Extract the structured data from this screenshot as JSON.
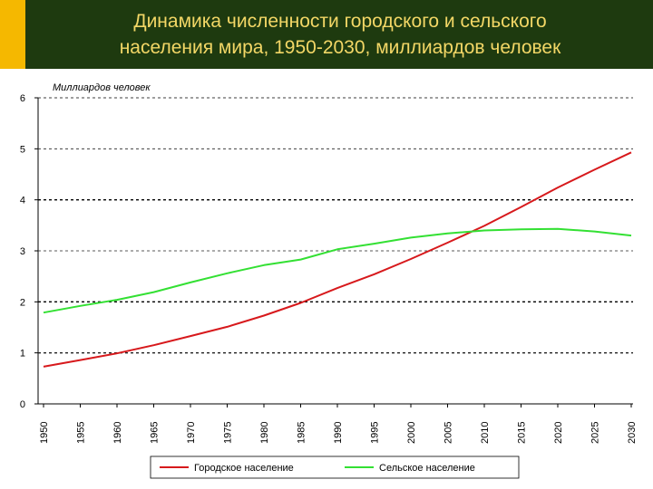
{
  "slide": {
    "title_line1": "Динамика численности городского и сельского",
    "title_line2": "населения мира, 1950-2030, миллиардов человек",
    "header_bg": "#1e3a0f",
    "accent_color": "#f5b800",
    "title_color": "#f3d766"
  },
  "chart_data": {
    "type": "line",
    "title": "",
    "ylabel": "Миллиардов человек",
    "xlabel": "",
    "ylim": [
      0,
      6
    ],
    "xlim": [
      1950,
      2030
    ],
    "yticks": [
      "0",
      "1",
      "2",
      "3",
      "4",
      "5",
      "6"
    ],
    "xticks": [
      "1950",
      "1955",
      "1960",
      "1965",
      "1970",
      "1975",
      "1980",
      "1985",
      "1990",
      "1995",
      "2000",
      "2005",
      "2010",
      "2015",
      "2020",
      "2025",
      "2030"
    ],
    "grid": "horizontal dashed",
    "legend_position": "bottom",
    "x": [
      1950,
      1955,
      1960,
      1965,
      1970,
      1975,
      1980,
      1985,
      1990,
      1995,
      2000,
      2005,
      2010,
      2015,
      2020,
      2025,
      2030
    ],
    "series": [
      {
        "name": "Городское население",
        "color": "#d7191c",
        "values": [
          0.73,
          0.86,
          0.99,
          1.15,
          1.33,
          1.51,
          1.73,
          1.98,
          2.27,
          2.54,
          2.84,
          3.16,
          3.49,
          3.86,
          4.24,
          4.59,
          4.93
        ]
      },
      {
        "name": "Сельское население",
        "color": "#33e033",
        "values": [
          1.79,
          1.92,
          2.04,
          2.19,
          2.38,
          2.56,
          2.72,
          2.83,
          3.03,
          3.14,
          3.26,
          3.34,
          3.4,
          3.42,
          3.43,
          3.38,
          3.3
        ]
      }
    ]
  }
}
